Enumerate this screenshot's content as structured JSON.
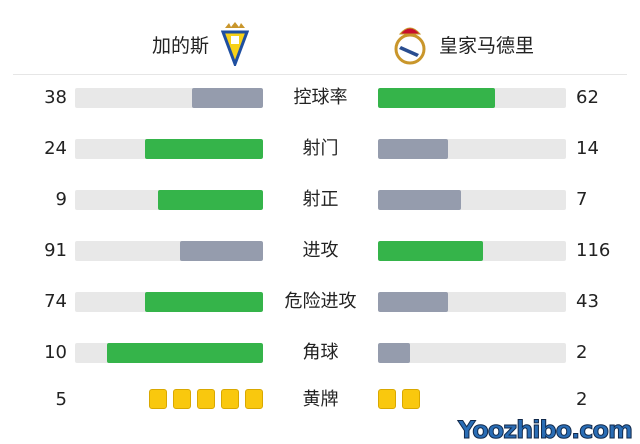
{
  "home": {
    "name": "加的斯",
    "logo": "cadiz-crest"
  },
  "away": {
    "name": "皇家马德里",
    "logo": "real-madrid-crest"
  },
  "colors": {
    "win": "#35b44a",
    "lose": "#959cad",
    "track": "#e8e8e8",
    "yellow": "#f9c80e"
  },
  "stats": [
    {
      "label": "控球率",
      "home": "38",
      "away": "62",
      "home_fill": 0.38,
      "away_fill": 0.62,
      "leader": "away"
    },
    {
      "label": "射门",
      "home": "24",
      "away": "14",
      "home_fill": 0.63,
      "away_fill": 0.37,
      "leader": "home"
    },
    {
      "label": "射正",
      "home": "9",
      "away": "7",
      "home_fill": 0.56,
      "away_fill": 0.44,
      "leader": "home"
    },
    {
      "label": "进攻",
      "home": "91",
      "away": "116",
      "home_fill": 0.44,
      "away_fill": 0.56,
      "leader": "away"
    },
    {
      "label": "危险进攻",
      "home": "74",
      "away": "43",
      "home_fill": 0.63,
      "away_fill": 0.37,
      "leader": "home"
    },
    {
      "label": "角球",
      "home": "10",
      "away": "2",
      "home_fill": 0.83,
      "away_fill": 0.17,
      "leader": "home"
    }
  ],
  "yellow_cards": {
    "label": "黄牌",
    "home": "5",
    "away": "2"
  },
  "watermark": "Yoozhibo.com"
}
